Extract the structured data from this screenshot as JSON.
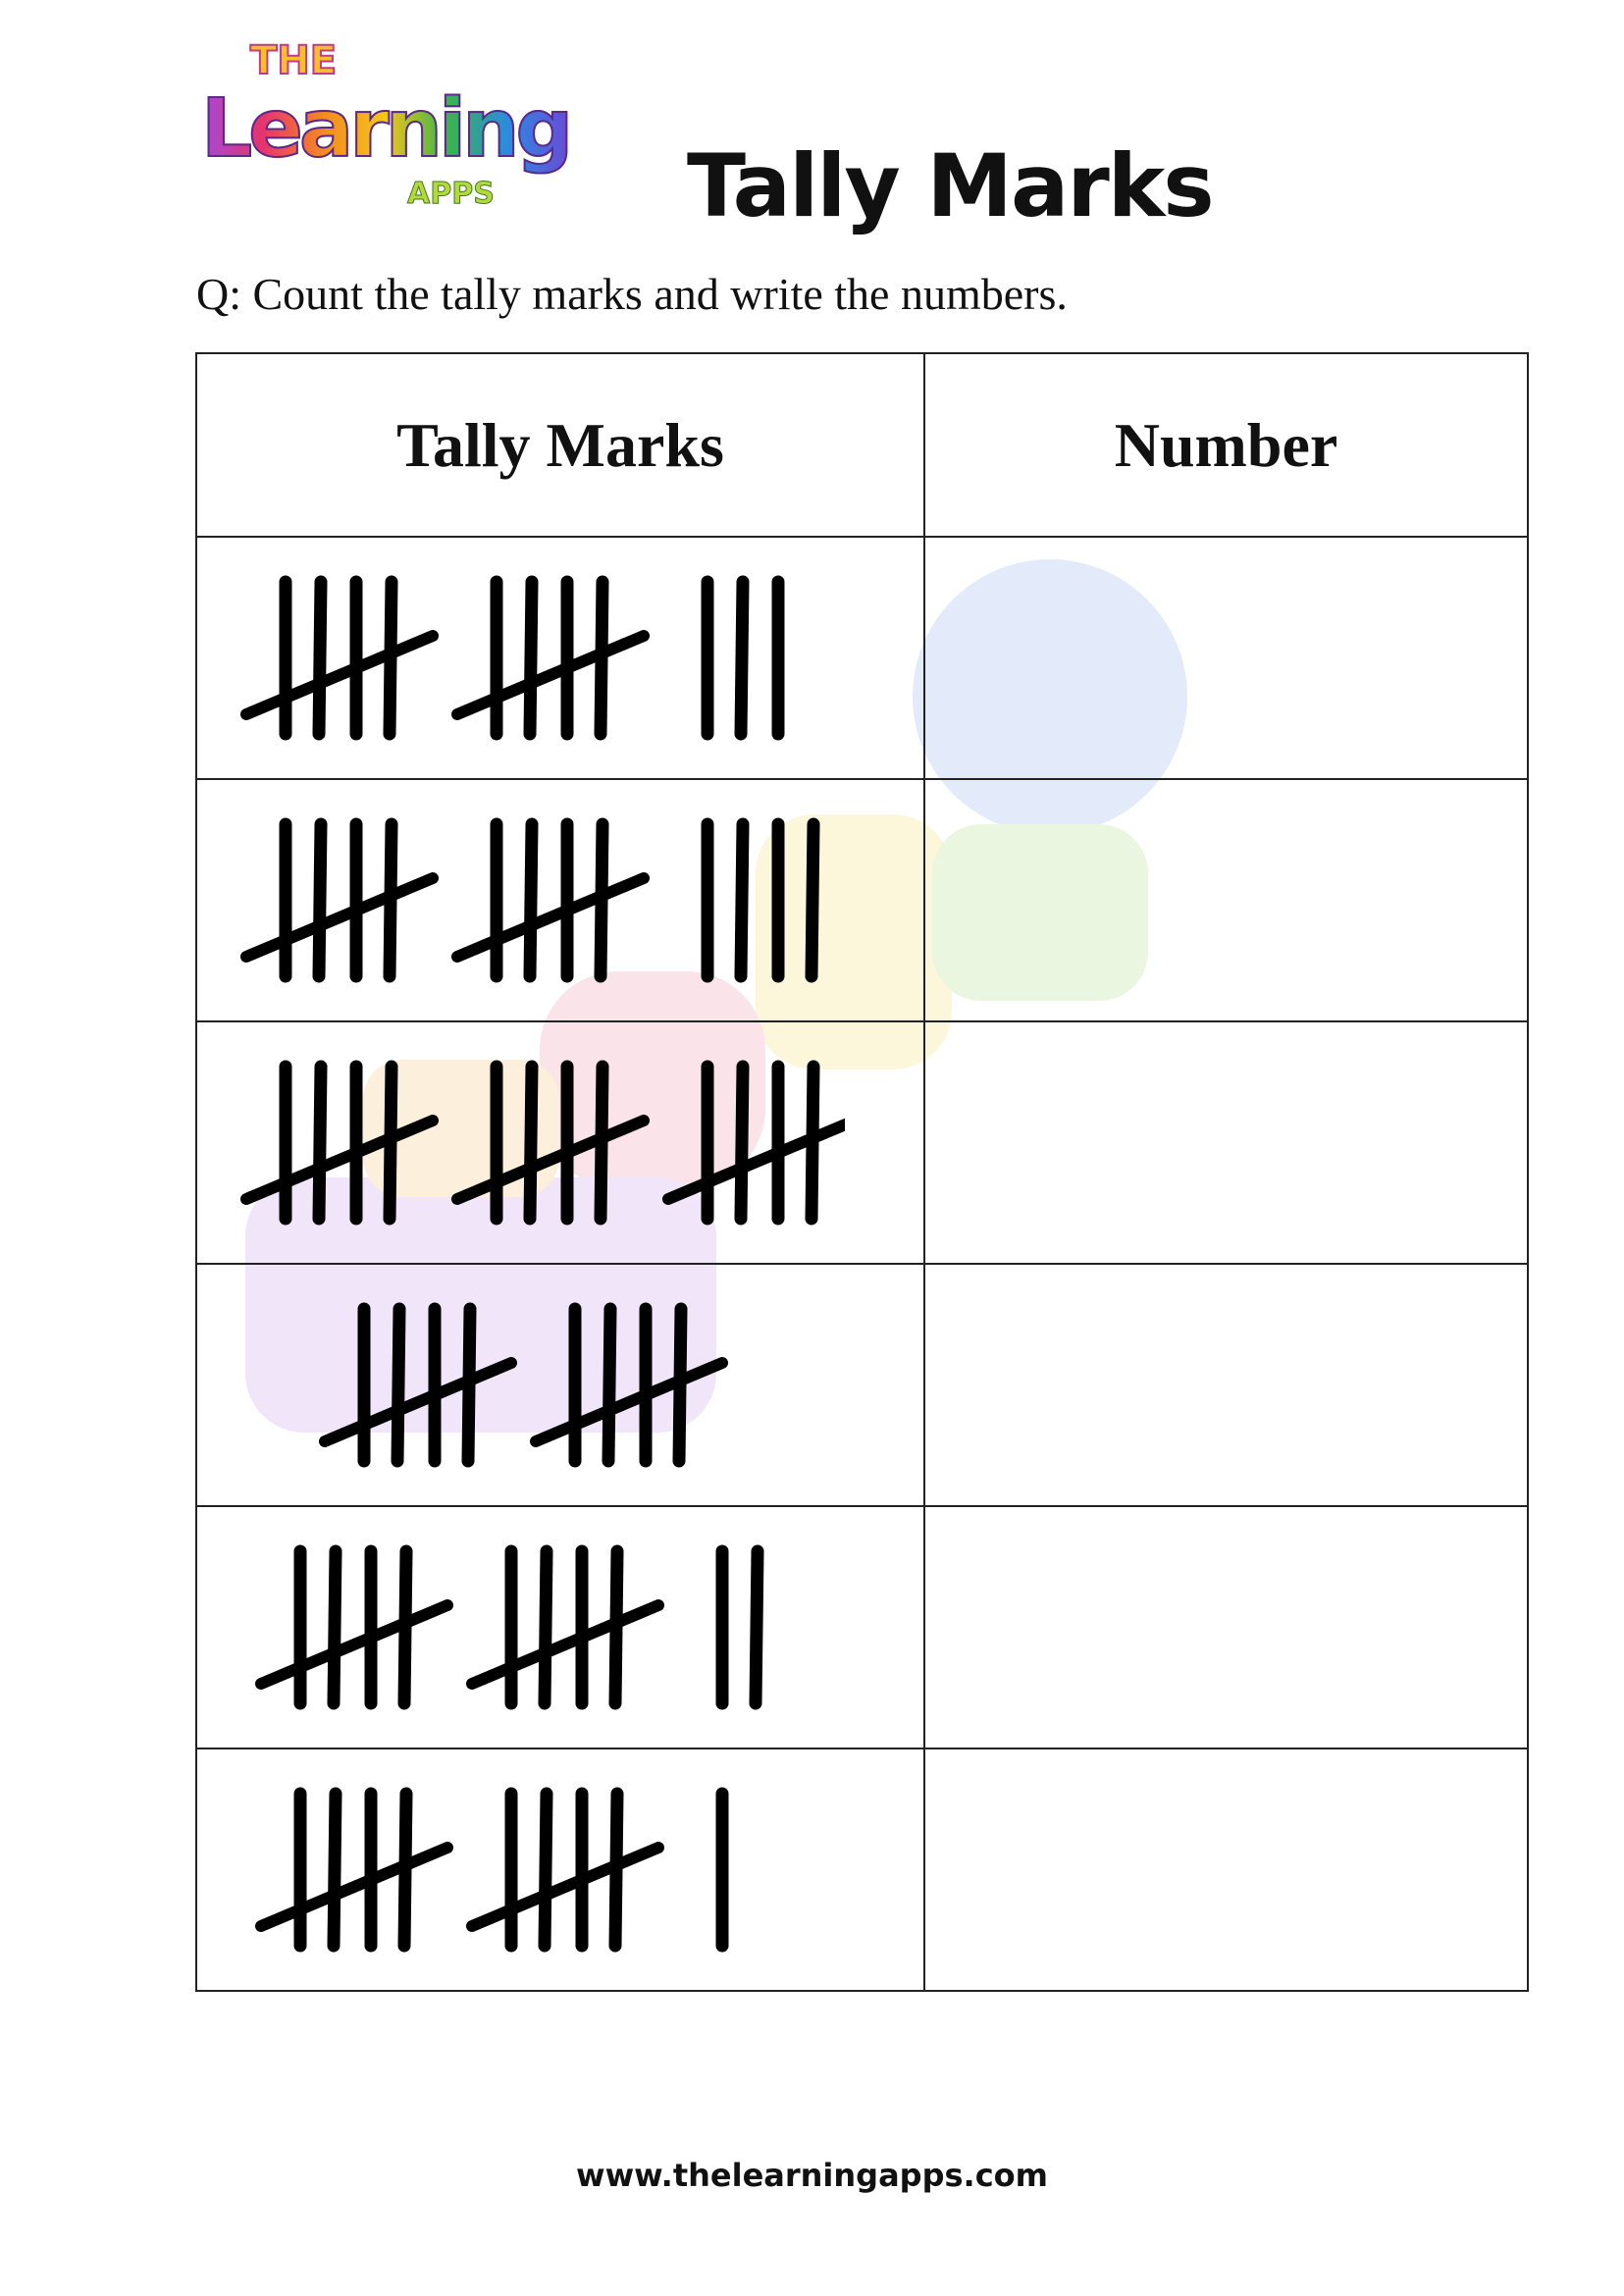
{
  "logo": {
    "line1": "THE",
    "line2": "Learning",
    "line3": "APPS"
  },
  "title": "Tally Marks",
  "question": "Q: Count the tally marks and write the numbers.",
  "table": {
    "headers": [
      "Tally Marks",
      "Number"
    ],
    "rows": [
      {
        "tally_count": 13,
        "number": ""
      },
      {
        "tally_count": 14,
        "number": ""
      },
      {
        "tally_count": 15,
        "number": ""
      },
      {
        "tally_count": 10,
        "number": ""
      },
      {
        "tally_count": 12,
        "number": ""
      },
      {
        "tally_count": 11,
        "number": ""
      }
    ]
  },
  "footer": "www.thelearningapps.com"
}
